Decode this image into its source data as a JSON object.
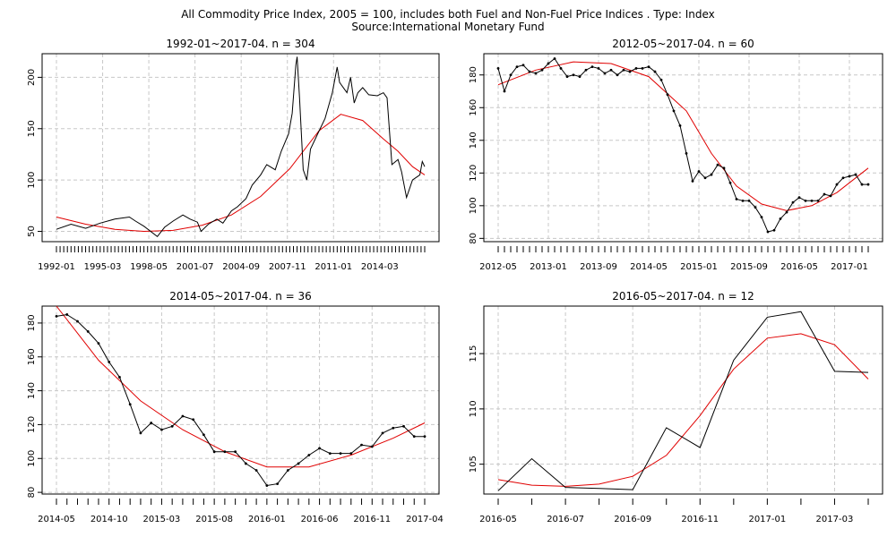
{
  "header": {
    "title": "All Commodity Price Index, 2005 = 100, includes both Fuel and Non-Fuel Price Indices . Type: Index",
    "source": "Source:International Monetary Fund"
  },
  "colors": {
    "series": "#000000",
    "trend": "#e00000",
    "grid": "#c8c8c8",
    "axis": "#000000"
  },
  "chart_data": [
    {
      "type": "line",
      "title": "1992-01~2017-04. n = 304",
      "xlabel": "",
      "ylabel": "",
      "x_tick_labels": [
        "1992-01",
        "1995-03",
        "1998-05",
        "2001-07",
        "2004-09",
        "2007-11",
        "2011-01",
        "2014-03"
      ],
      "y_ticks": [
        50,
        100,
        150,
        200
      ],
      "ylim": [
        40,
        223
      ],
      "grid": true,
      "series": [
        {
          "role": "observed",
          "x": [
            "1992-01",
            "1993-01",
            "1994-01",
            "1995-01",
            "1996-01",
            "1997-01",
            "1997-06",
            "1998-01",
            "1998-12",
            "1999-06",
            "2000-01",
            "2000-09",
            "2001-03",
            "2001-09",
            "2001-12",
            "2002-06",
            "2003-01",
            "2003-06",
            "2004-01",
            "2004-06",
            "2005-01",
            "2005-06",
            "2006-01",
            "2006-06",
            "2007-01",
            "2007-06",
            "2007-12",
            "2008-03",
            "2008-06",
            "2008-07",
            "2008-09",
            "2008-12",
            "2009-03",
            "2009-06",
            "2009-12",
            "2010-06",
            "2010-12",
            "2011-04",
            "2011-06",
            "2011-12",
            "2012-03",
            "2012-06",
            "2012-09",
            "2013-01",
            "2013-06",
            "2014-01",
            "2014-06",
            "2014-09",
            "2015-01",
            "2015-06",
            "2015-09",
            "2016-01",
            "2016-06",
            "2016-12",
            "2017-02",
            "2017-04"
          ],
          "y": [
            52,
            57,
            53,
            58,
            62,
            64,
            60,
            55,
            45,
            54,
            60,
            66,
            62,
            59,
            50,
            57,
            62,
            58,
            70,
            74,
            82,
            95,
            105,
            115,
            110,
            128,
            145,
            165,
            212,
            220,
            180,
            110,
            100,
            130,
            145,
            160,
            185,
            210,
            195,
            185,
            200,
            175,
            185,
            190,
            183,
            182,
            185,
            180,
            115,
            120,
            108,
            83,
            100,
            105,
            118,
            113
          ]
        },
        {
          "role": "trend",
          "x": [
            "1992-01",
            "1994-01",
            "1996-01",
            "1998-01",
            "2000-01",
            "2002-01",
            "2004-01",
            "2006-01",
            "2008-01",
            "2010-01",
            "2011-07",
            "2013-01",
            "2014-06",
            "2015-06",
            "2016-06",
            "2017-04"
          ],
          "y": [
            64,
            57,
            52,
            50,
            51,
            56,
            66,
            84,
            111,
            148,
            164,
            158,
            140,
            128,
            113,
            105
          ]
        }
      ]
    },
    {
      "type": "line",
      "title": "2012-05~2017-04. n = 60",
      "xlabel": "",
      "ylabel": "",
      "x_tick_labels": [
        "2012-05",
        "2013-01",
        "2013-09",
        "2014-05",
        "2015-01",
        "2015-09",
        "2016-05",
        "2017-01"
      ],
      "y_ticks": [
        80,
        100,
        120,
        140,
        160,
        180
      ],
      "ylim": [
        78,
        193
      ],
      "grid": true,
      "series": [
        {
          "role": "observed",
          "x": [
            "2012-05",
            "2012-06",
            "2012-07",
            "2012-08",
            "2012-09",
            "2012-10",
            "2012-11",
            "2012-12",
            "2013-01",
            "2013-02",
            "2013-03",
            "2013-04",
            "2013-05",
            "2013-06",
            "2013-07",
            "2013-08",
            "2013-09",
            "2013-10",
            "2013-11",
            "2013-12",
            "2014-01",
            "2014-02",
            "2014-03",
            "2014-04",
            "2014-05",
            "2014-06",
            "2014-07",
            "2014-08",
            "2014-09",
            "2014-10",
            "2014-11",
            "2014-12",
            "2015-01",
            "2015-02",
            "2015-03",
            "2015-04",
            "2015-05",
            "2015-06",
            "2015-07",
            "2015-08",
            "2015-09",
            "2015-10",
            "2015-11",
            "2015-12",
            "2016-01",
            "2016-02",
            "2016-03",
            "2016-04",
            "2016-05",
            "2016-06",
            "2016-07",
            "2016-08",
            "2016-09",
            "2016-10",
            "2016-11",
            "2016-12",
            "2017-01",
            "2017-02",
            "2017-03",
            "2017-04"
          ],
          "y": [
            184,
            170,
            180,
            185,
            186,
            182,
            181,
            183,
            187,
            190,
            184,
            179,
            180,
            179,
            183,
            185,
            184,
            181,
            183,
            180,
            183,
            182,
            184,
            184,
            185,
            182,
            177,
            168,
            158,
            149,
            132,
            115,
            121,
            117,
            119,
            125,
            123,
            114,
            104,
            103,
            103,
            99,
            93,
            84,
            85,
            92,
            96,
            102,
            105,
            103,
            103,
            103,
            107,
            106,
            113,
            117,
            118,
            119,
            113,
            113
          ]
        },
        {
          "role": "trend",
          "x": [
            "2012-05",
            "2012-11",
            "2013-05",
            "2013-11",
            "2014-05",
            "2014-11",
            "2015-03",
            "2015-07",
            "2015-11",
            "2016-03",
            "2016-07",
            "2016-11",
            "2017-04"
          ],
          "y": [
            174,
            183,
            188,
            187,
            179,
            158,
            132,
            112,
            101,
            97,
            100,
            108,
            123
          ]
        }
      ]
    },
    {
      "type": "line",
      "title": "2014-05~2017-04. n = 36",
      "xlabel": "",
      "ylabel": "",
      "x_tick_labels": [
        "2014-05",
        "2014-10",
        "2015-03",
        "2015-08",
        "2016-01",
        "2016-06",
        "2016-11",
        "2017-04"
      ],
      "y_ticks": [
        80,
        100,
        120,
        140,
        160,
        180
      ],
      "ylim": [
        79,
        190
      ],
      "grid": true,
      "series": [
        {
          "role": "observed",
          "x": [
            "2014-05",
            "2014-06",
            "2014-07",
            "2014-08",
            "2014-09",
            "2014-10",
            "2014-11",
            "2014-12",
            "2015-01",
            "2015-02",
            "2015-03",
            "2015-04",
            "2015-05",
            "2015-06",
            "2015-07",
            "2015-08",
            "2015-09",
            "2015-10",
            "2015-11",
            "2015-12",
            "2016-01",
            "2016-02",
            "2016-03",
            "2016-04",
            "2016-05",
            "2016-06",
            "2016-07",
            "2016-08",
            "2016-09",
            "2016-10",
            "2016-11",
            "2016-12",
            "2017-01",
            "2017-02",
            "2017-03",
            "2017-04"
          ],
          "y": [
            184,
            185,
            181,
            175,
            168,
            157,
            148,
            132,
            115,
            121,
            117,
            119,
            125,
            123,
            114,
            104,
            104,
            104,
            97,
            93,
            84,
            85,
            93,
            97,
            102,
            106,
            103,
            103,
            103,
            108,
            107,
            115,
            118,
            119,
            113,
            113
          ]
        },
        {
          "role": "trend",
          "x": [
            "2014-05",
            "2014-09",
            "2015-01",
            "2015-05",
            "2015-09",
            "2016-01",
            "2016-05",
            "2016-09",
            "2017-01",
            "2017-04"
          ],
          "y": [
            190,
            158,
            134,
            117,
            104,
            95,
            95,
            102,
            112,
            121
          ]
        }
      ]
    },
    {
      "type": "line",
      "title": "2016-05~2017-04. n = 12",
      "xlabel": "",
      "ylabel": "",
      "x_tick_labels": [
        "2016-05",
        "2016-07",
        "2016-09",
        "2016-11",
        "2017-01",
        "2017-03"
      ],
      "y_ticks": [
        105,
        110,
        115
      ],
      "ylim": [
        102.3,
        119.3
      ],
      "grid": true,
      "series": [
        {
          "role": "observed",
          "x": [
            "2016-05",
            "2016-06",
            "2016-07",
            "2016-08",
            "2016-09",
            "2016-10",
            "2016-11",
            "2016-12",
            "2017-01",
            "2017-02",
            "2017-03",
            "2017-04"
          ],
          "y": [
            102.6,
            105.5,
            102.9,
            102.8,
            102.7,
            108.3,
            106.5,
            114.4,
            118.3,
            118.8,
            113.4,
            113.3
          ]
        },
        {
          "role": "trend",
          "x": [
            "2016-05",
            "2016-06",
            "2016-07",
            "2016-08",
            "2016-09",
            "2016-10",
            "2016-11",
            "2016-12",
            "2017-01",
            "2017-02",
            "2017-03",
            "2017-04"
          ],
          "y": [
            103.6,
            103.1,
            103,
            103.2,
            103.9,
            105.8,
            109.4,
            113.6,
            116.4,
            116.8,
            115.8,
            112.7
          ]
        }
      ]
    }
  ]
}
